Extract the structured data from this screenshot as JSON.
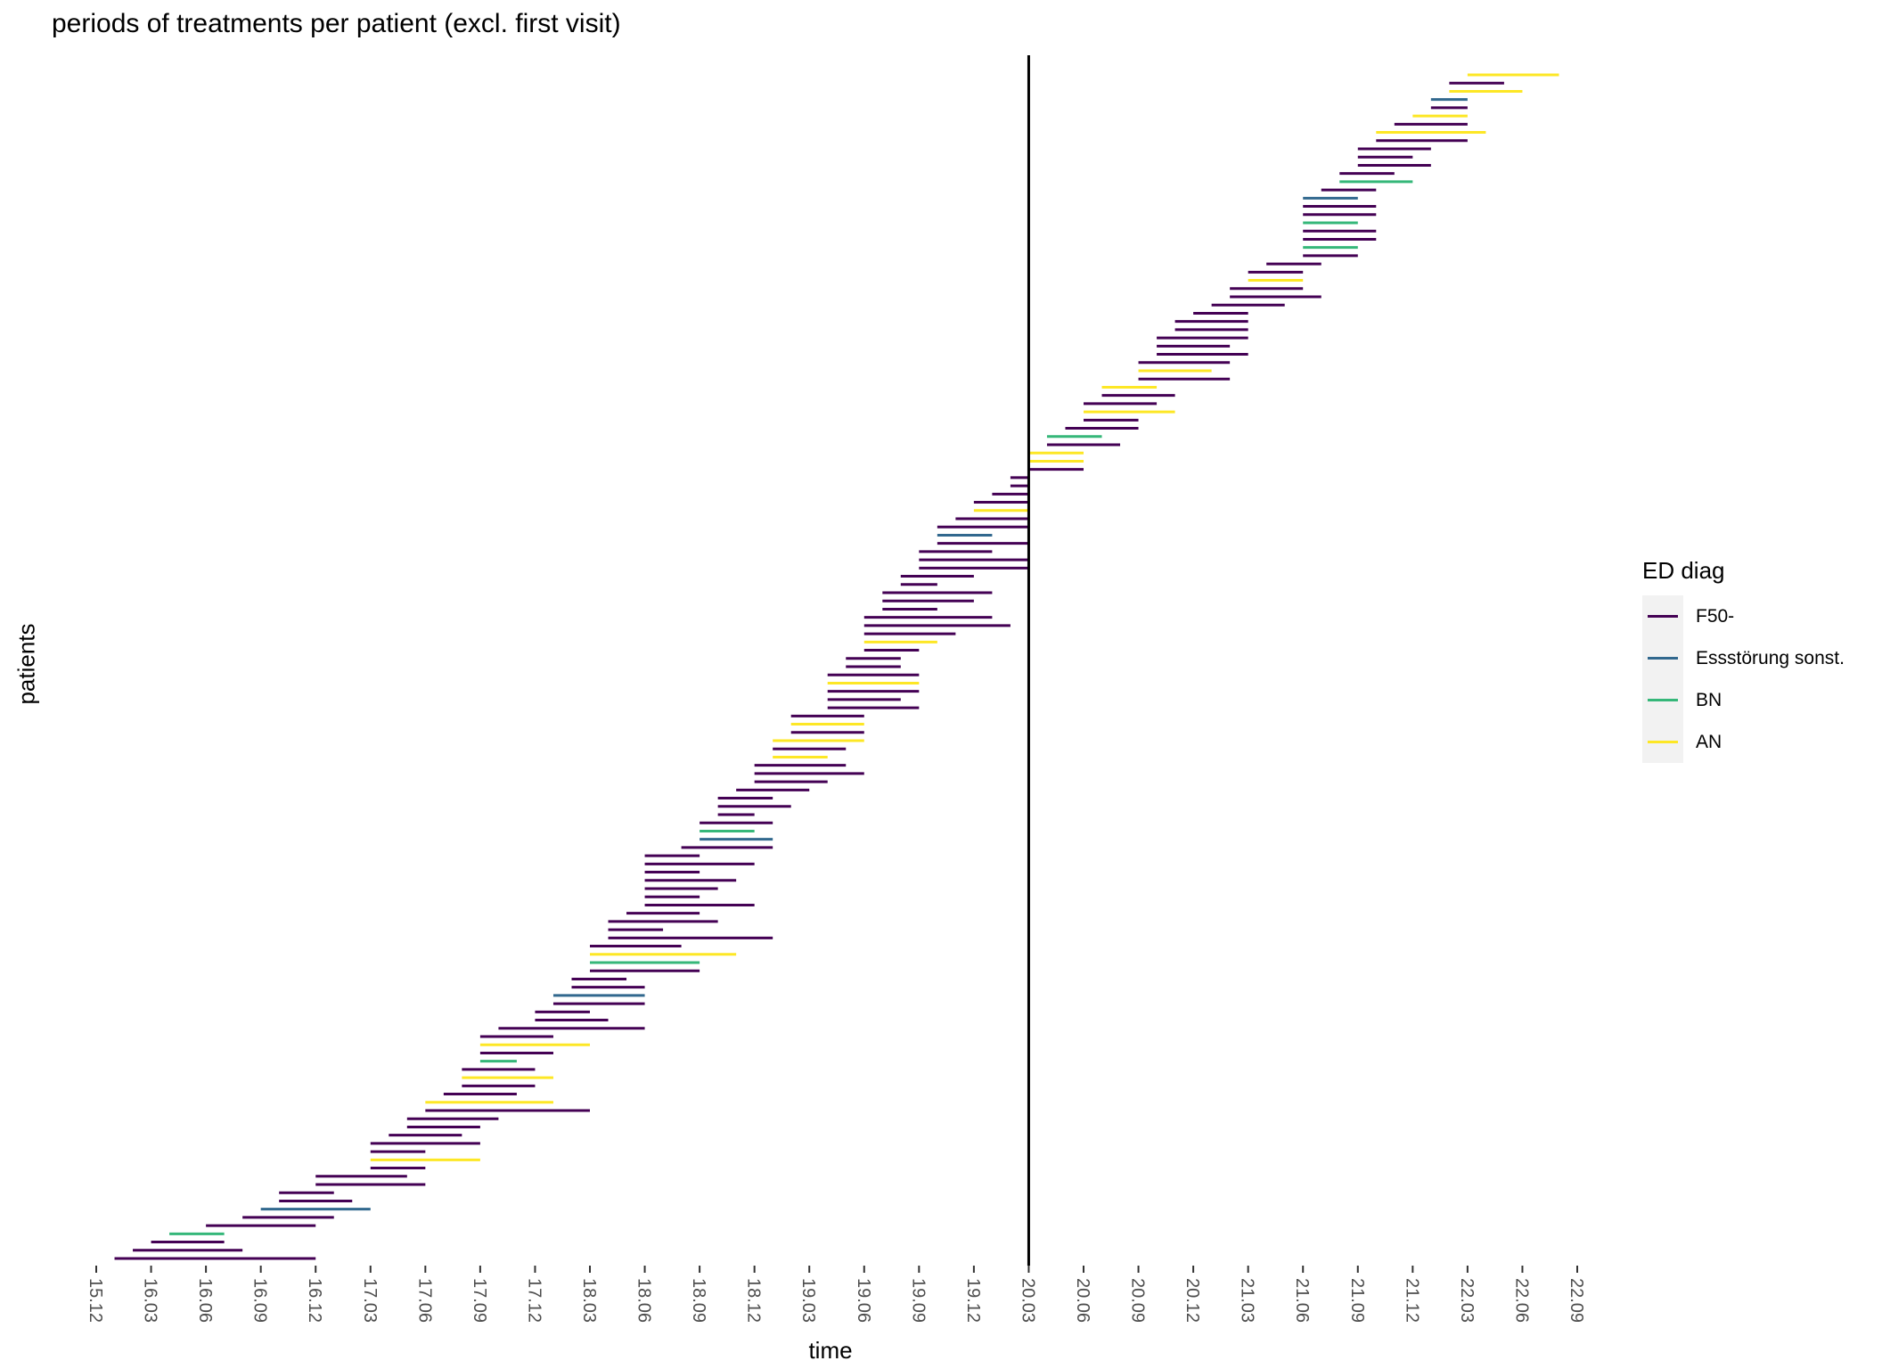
{
  "chart_data": {
    "type": "timeline",
    "title": "periods of treatments per patient (excl. first visit)",
    "xlabel": "time",
    "ylabel": "patients",
    "x_ticks": [
      "15.12",
      "16.03",
      "16.06",
      "16.09",
      "16.12",
      "17.03",
      "17.06",
      "17.09",
      "17.12",
      "18.03",
      "18.06",
      "18.09",
      "18.12",
      "19.03",
      "19.06",
      "19.09",
      "19.12",
      "20.03",
      "20.06",
      "20.09",
      "20.12",
      "21.03",
      "21.06",
      "21.09",
      "21.12",
      "22.03",
      "22.06",
      "22.09"
    ],
    "xlim": [
      "2015-12-01",
      "2022-09-01"
    ],
    "reference_line": "2020-03-01",
    "grid": false,
    "legend": {
      "title": "ED diag",
      "position": "right",
      "items": [
        {
          "label": "F50-",
          "color": "#440154"
        },
        {
          "label": "Essstörung sonst.",
          "color": "#31688e"
        },
        {
          "label": "BN",
          "color": "#35b779"
        },
        {
          "label": "AN",
          "color": "#fde725"
        }
      ]
    },
    "periods": [
      {
        "cat": "F50-",
        "start": "2016-01",
        "end": "2016-12"
      },
      {
        "cat": "Essstörung sonst.",
        "start": "2016-09",
        "end": "2017-03"
      },
      {
        "cat": "F50-",
        "start": "2016-02",
        "end": "2016-08"
      },
      {
        "cat": "F50-",
        "start": "2017-03",
        "end": "2017-06"
      },
      {
        "cat": "BN",
        "start": "2017-09",
        "end": "2017-11"
      },
      {
        "cat": "F50-",
        "start": "2016-03",
        "end": "2016-07"
      },
      {
        "cat": "F50-",
        "start": "2019-09",
        "end": "2020-03"
      },
      {
        "cat": "F50-",
        "start": "2018-04",
        "end": "2019-01"
      },
      {
        "cat": "F50-",
        "start": "2016-06",
        "end": "2016-12"
      },
      {
        "cat": "BN",
        "start": "2016-04",
        "end": "2016-07"
      },
      {
        "cat": "F50-",
        "start": "2018-06",
        "end": "2018-12"
      },
      {
        "cat": "F50-",
        "start": "2017-06",
        "end": "2018-03"
      },
      {
        "cat": "F50-",
        "start": "2016-10",
        "end": "2017-02"
      },
      {
        "cat": "F50-",
        "start": "2018-06",
        "end": "2018-09"
      },
      {
        "cat": "F50-",
        "start": "2019-08",
        "end": "2019-10"
      },
      {
        "cat": "F50-",
        "start": "2020-02",
        "end": "2020-03"
      },
      {
        "cat": "F50-",
        "start": "2016-08",
        "end": "2017-01"
      },
      {
        "cat": "F50-",
        "start": "2017-04",
        "end": "2017-08"
      },
      {
        "cat": "F50-",
        "start": "2018-02",
        "end": "2018-06"
      },
      {
        "cat": "F50-",
        "start": "2017-08",
        "end": "2017-12"
      },
      {
        "cat": "F50-",
        "start": "2016-10",
        "end": "2017-01"
      },
      {
        "cat": "F50-",
        "start": "2016-12",
        "end": "2017-06"
      },
      {
        "cat": "AN",
        "start": "2017-03",
        "end": "2017-09"
      },
      {
        "cat": "F50-",
        "start": "2017-09",
        "end": "2018-01"
      },
      {
        "cat": "F50-",
        "start": "2017-05",
        "end": "2017-09"
      },
      {
        "cat": "F50-",
        "start": "2018-06",
        "end": "2018-10"
      },
      {
        "cat": "F50-",
        "start": "2016-12",
        "end": "2017-05"
      },
      {
        "cat": "F50-",
        "start": "2018-10",
        "end": "2018-12"
      },
      {
        "cat": "F50-",
        "start": "2017-05",
        "end": "2017-10"
      },
      {
        "cat": "AN",
        "start": "2017-08",
        "end": "2018-01"
      },
      {
        "cat": "F50-",
        "start": "2017-03",
        "end": "2017-06"
      },
      {
        "cat": "F50-",
        "start": "2018-01",
        "end": "2018-06"
      },
      {
        "cat": "F50-",
        "start": "2019-04",
        "end": "2019-09"
      },
      {
        "cat": "F50-",
        "start": "2022-01",
        "end": "2022-03"
      },
      {
        "cat": "F50-",
        "start": "2017-03",
        "end": "2017-09"
      },
      {
        "cat": "AN",
        "start": "2017-09",
        "end": "2018-03"
      },
      {
        "cat": "F50-",
        "start": "2018-03",
        "end": "2018-09"
      },
      {
        "cat": "BN",
        "start": "2018-03",
        "end": "2018-09"
      },
      {
        "cat": "F50-",
        "start": "2018-08",
        "end": "2019-01"
      },
      {
        "cat": "Essstörung sonst.",
        "start": "2018-09",
        "end": "2019-01"
      },
      {
        "cat": "F50-",
        "start": "2018-11",
        "end": "2019-03"
      },
      {
        "cat": "F50-",
        "start": "2019-07",
        "end": "2019-10"
      },
      {
        "cat": "F50-",
        "start": "2020-11",
        "end": "2021-03"
      },
      {
        "cat": "AN",
        "start": "2017-06",
        "end": "2018-01"
      },
      {
        "cat": "F50-",
        "start": "2017-07",
        "end": "2017-11"
      },
      {
        "cat": "F50-",
        "start": "2018-04",
        "end": "2018-07"
      },
      {
        "cat": "F50-",
        "start": "2018-06",
        "end": "2018-11"
      },
      {
        "cat": "F50-",
        "start": "2017-10",
        "end": "2018-06"
      },
      {
        "cat": "AN",
        "start": "2018-03",
        "end": "2018-11"
      },
      {
        "cat": "F50-",
        "start": "2019-04",
        "end": "2019-08"
      },
      {
        "cat": "F50-",
        "start": "2020-06",
        "end": "2020-09"
      },
      {
        "cat": "F50-",
        "start": "2020-10",
        "end": "2021-03"
      },
      {
        "cat": "F50-",
        "start": "2017-08",
        "end": "2017-12"
      },
      {
        "cat": "BN",
        "start": "2018-09",
        "end": "2018-12"
      },
      {
        "cat": "F50-",
        "start": "2017-12",
        "end": "2018-04"
      },
      {
        "cat": "F50-",
        "start": "2018-06",
        "end": "2018-09"
      },
      {
        "cat": "F50-",
        "start": "2019-05",
        "end": "2019-08"
      },
      {
        "cat": "F50-",
        "start": "2017-09",
        "end": "2018-01"
      },
      {
        "cat": "Essstörung sonst.",
        "start": "2018-01",
        "end": "2018-06"
      },
      {
        "cat": "AN",
        "start": "2019-01",
        "end": "2019-04"
      },
      {
        "cat": "F50-",
        "start": "2018-10",
        "end": "2019-02"
      },
      {
        "cat": "F50-",
        "start": "2020-03",
        "end": "2020-06"
      },
      {
        "cat": "F50-",
        "start": "2017-12",
        "end": "2018-03"
      },
      {
        "cat": "F50-",
        "start": "2018-05",
        "end": "2018-09"
      },
      {
        "cat": "F50-",
        "start": "2020-09",
        "end": "2021-02"
      },
      {
        "cat": "F50-",
        "start": "2018-02",
        "end": "2018-05"
      },
      {
        "cat": "F50-",
        "start": "2018-12",
        "end": "2019-04"
      },
      {
        "cat": "F50-",
        "start": "2019-06",
        "end": "2019-09"
      },
      {
        "cat": "AN",
        "start": "2019-06",
        "end": "2019-10"
      },
      {
        "cat": "F50-",
        "start": "2018-04",
        "end": "2018-10"
      },
      {
        "cat": "F50-",
        "start": "2019-04",
        "end": "2019-09"
      },
      {
        "cat": "F50-",
        "start": "2018-03",
        "end": "2018-08"
      },
      {
        "cat": "F50-",
        "start": "2019-01",
        "end": "2019-05"
      },
      {
        "cat": "F50-",
        "start": "2021-07",
        "end": "2021-10"
      },
      {
        "cat": "F50-",
        "start": "2019-09",
        "end": "2020-03"
      },
      {
        "cat": "F50-",
        "start": "2021-02",
        "end": "2021-07"
      },
      {
        "cat": "F50-",
        "start": "2018-06",
        "end": "2018-12"
      },
      {
        "cat": "F50-",
        "start": "2019-02",
        "end": "2019-06"
      },
      {
        "cat": "F50-",
        "start": "2018-06",
        "end": "2018-09"
      },
      {
        "cat": "F50-",
        "start": "2018-12",
        "end": "2019-06"
      },
      {
        "cat": "F50-",
        "start": "2019-10",
        "end": "2020-03"
      },
      {
        "cat": "F50-",
        "start": "2018-09",
        "end": "2019-01"
      },
      {
        "cat": "AN",
        "start": "2019-01",
        "end": "2019-06"
      },
      {
        "cat": "F50-",
        "start": "2018-10",
        "end": "2019-01"
      },
      {
        "cat": "F50-",
        "start": "2019-06",
        "end": "2019-11"
      },
      {
        "cat": "F50-",
        "start": "2019-06",
        "end": "2020-02"
      },
      {
        "cat": "AN",
        "start": "2020-03",
        "end": "2020-06"
      },
      {
        "cat": "F50-",
        "start": "2018-12",
        "end": "2019-05"
      },
      {
        "cat": "AN",
        "start": "2019-02",
        "end": "2019-06"
      },
      {
        "cat": "F50-",
        "start": "2019-07",
        "end": "2019-12"
      },
      {
        "cat": "F50-",
        "start": "2021-06",
        "end": "2021-09"
      },
      {
        "cat": "F50-",
        "start": "2019-02",
        "end": "2019-06"
      },
      {
        "cat": "F50-",
        "start": "2019-11",
        "end": "2020-03"
      },
      {
        "cat": "AN",
        "start": "2019-04",
        "end": "2019-09"
      },
      {
        "cat": "F50-",
        "start": "2019-07",
        "end": "2020-01"
      },
      {
        "cat": "F50-",
        "start": "2019-05",
        "end": "2019-08"
      },
      {
        "cat": "F50-",
        "start": "2020-07",
        "end": "2020-11"
      },
      {
        "cat": "F50-",
        "start": "2019-04",
        "end": "2019-09"
      },
      {
        "cat": "BN",
        "start": "2021-06",
        "end": "2021-09"
      },
      {
        "cat": "F50-",
        "start": "2019-06",
        "end": "2020-01"
      },
      {
        "cat": "F50-",
        "start": "2021-09",
        "end": "2022-01"
      },
      {
        "cat": "F50-",
        "start": "2019-08",
        "end": "2019-12"
      },
      {
        "cat": "Essstörung sonst.",
        "start": "2019-10",
        "end": "2020-01"
      },
      {
        "cat": "AN",
        "start": "2020-03",
        "end": "2020-06"
      },
      {
        "cat": "AN",
        "start": "2020-09",
        "end": "2021-01"
      },
      {
        "cat": "F50-",
        "start": "2019-09",
        "end": "2020-01"
      },
      {
        "cat": "AN",
        "start": "2020-07",
        "end": "2020-10"
      },
      {
        "cat": "F50-",
        "start": "2021-09",
        "end": "2021-12"
      },
      {
        "cat": "F50-",
        "start": "2019-10",
        "end": "2020-03"
      },
      {
        "cat": "F50-",
        "start": "2020-10",
        "end": "2021-02"
      },
      {
        "cat": "AN",
        "start": "2019-12",
        "end": "2020-03"
      },
      {
        "cat": "F50-",
        "start": "2020-04",
        "end": "2020-08"
      },
      {
        "cat": "F50-",
        "start": "2021-10",
        "end": "2022-03"
      },
      {
        "cat": "F50-",
        "start": "2019-12",
        "end": "2020-03"
      },
      {
        "cat": "AN",
        "start": "2020-06",
        "end": "2020-11"
      },
      {
        "cat": "F50-",
        "start": "2020-01",
        "end": "2020-03"
      },
      {
        "cat": "BN",
        "start": "2020-04",
        "end": "2020-07"
      },
      {
        "cat": "F50-",
        "start": "2020-12",
        "end": "2021-03"
      },
      {
        "cat": "F50-",
        "start": "2020-02",
        "end": "2020-03"
      },
      {
        "cat": "F50-",
        "start": "2020-05",
        "end": "2020-09"
      },
      {
        "cat": "AN",
        "start": "2021-03",
        "end": "2021-06"
      },
      {
        "cat": "F50-",
        "start": "2020-06",
        "end": "2020-10"
      },
      {
        "cat": "F50-",
        "start": "2021-06",
        "end": "2021-10"
      },
      {
        "cat": "F50-",
        "start": "2020-09",
        "end": "2021-02"
      },
      {
        "cat": "F50-",
        "start": "2021-09",
        "end": "2022-01"
      },
      {
        "cat": "F50-",
        "start": "2020-10",
        "end": "2021-03"
      },
      {
        "cat": "F50-",
        "start": "2021-06",
        "end": "2021-10"
      },
      {
        "cat": "Essstörung sonst.",
        "start": "2022-01",
        "end": "2022-03"
      },
      {
        "cat": "F50-",
        "start": "2020-11",
        "end": "2021-03"
      },
      {
        "cat": "F50-",
        "start": "2021-04",
        "end": "2021-07"
      },
      {
        "cat": "F50-",
        "start": "2021-01",
        "end": "2021-05"
      },
      {
        "cat": "BN",
        "start": "2021-06",
        "end": "2021-09"
      },
      {
        "cat": "F50-",
        "start": "2021-02",
        "end": "2021-06"
      },
      {
        "cat": "F50-",
        "start": "2021-06",
        "end": "2021-10"
      },
      {
        "cat": "AN",
        "start": "2021-10",
        "end": "2022-04"
      },
      {
        "cat": "F50-",
        "start": "2021-03",
        "end": "2021-06"
      },
      {
        "cat": "BN",
        "start": "2021-08",
        "end": "2021-12"
      },
      {
        "cat": "F50-",
        "start": "2021-06",
        "end": "2021-10"
      },
      {
        "cat": "Essstörung sonst.",
        "start": "2021-06",
        "end": "2021-09"
      },
      {
        "cat": "F50-",
        "start": "2021-08",
        "end": "2021-11"
      },
      {
        "cat": "AN",
        "start": "2021-12",
        "end": "2022-03"
      },
      {
        "cat": "F50-",
        "start": "2021-11",
        "end": "2022-03"
      },
      {
        "cat": "AN",
        "start": "2022-02",
        "end": "2022-06"
      },
      {
        "cat": "F50-",
        "start": "2022-02",
        "end": "2022-05"
      },
      {
        "cat": "AN",
        "start": "2022-03",
        "end": "2022-08"
      }
    ]
  }
}
